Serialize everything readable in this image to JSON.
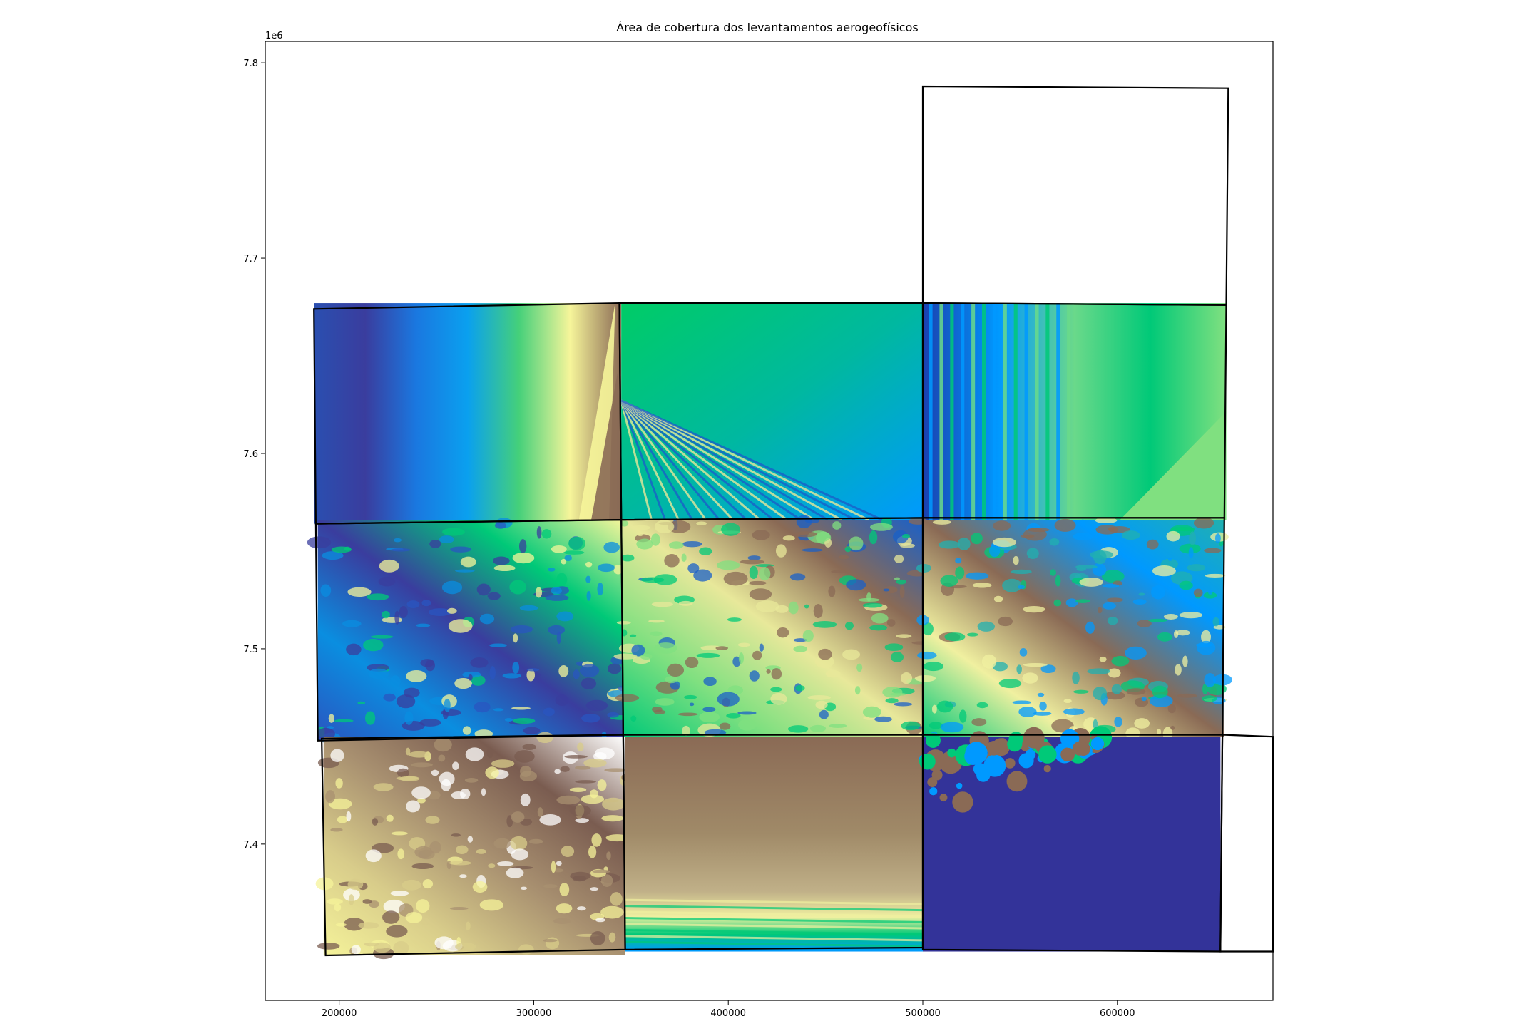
{
  "chart_data": {
    "type": "heatmap",
    "title": "Área de cobertura dos levantamentos aerogeofísicos",
    "xlabel": "",
    "ylabel": "",
    "xlim": [
      162000,
      680000
    ],
    "ylim": [
      7320000,
      7811000
    ],
    "x_ticks": [
      {
        "value": 200000,
        "label": "200000"
      },
      {
        "value": 300000,
        "label": "300000"
      },
      {
        "value": 400000,
        "label": "400000"
      },
      {
        "value": 500000,
        "label": "500000"
      },
      {
        "value": 600000,
        "label": "600000"
      }
    ],
    "y_ticks": [
      {
        "value": 7400000,
        "label": "7.4"
      },
      {
        "value": 7500000,
        "label": "7.5"
      },
      {
        "value": 7600000,
        "label": "7.6"
      },
      {
        "value": 7700000,
        "label": "7.7"
      },
      {
        "value": 7800000,
        "label": "7.8"
      }
    ],
    "y_offset_label": "1e6",
    "grid": false,
    "colormap": "terrain",
    "colormap_stops": [
      "#333399",
      "#1a5fcc",
      "#0099ff",
      "#00c978",
      "#80e080",
      "#ffff99",
      "#bfa57a",
      "#806050",
      "#ffffff"
    ],
    "raster_tiles": [
      {
        "name": "tile-r1-c1",
        "x": [
          187000,
          345000
        ],
        "y": [
          7564000,
          7677000
        ],
        "pattern": "vertical-bands",
        "colors": [
          "#2a4fb0",
          "#3a3d9e",
          "#1a78e0",
          "#0aa0ef",
          "#45d07a",
          "#f6f59a",
          "#8a6a55"
        ]
      },
      {
        "name": "tile-r1-c2",
        "x": [
          345000,
          500000
        ],
        "y": [
          7566000,
          7677000
        ],
        "pattern": "fan",
        "colors": [
          "#00cc66",
          "#00b8a0",
          "#0099ff",
          "#1a60c8",
          "#e8e89a"
        ]
      },
      {
        "name": "tile-r1-c3",
        "x": [
          500000,
          656000
        ],
        "y": [
          7566000,
          7677000
        ],
        "pattern": "vertical-stripes",
        "colors": [
          "#1a40b0",
          "#0099ff",
          "#6ad98a",
          "#00c978",
          "#80e080"
        ]
      },
      {
        "name": "tile-r2-c1",
        "x": [
          189000,
          346000
        ],
        "y": [
          7453000,
          7566000
        ],
        "pattern": "terrain-low",
        "colors": [
          "#2a55c0",
          "#0a8ee0",
          "#3a3d9e",
          "#00c978",
          "#f6f59a"
        ]
      },
      {
        "name": "tile-r2-c2",
        "x": [
          346000,
          500000
        ],
        "y": [
          7455000,
          7566000
        ],
        "pattern": "terrain-mixed",
        "colors": [
          "#00c978",
          "#80e080",
          "#e8e89a",
          "#8a6a55",
          "#1a60c8"
        ]
      },
      {
        "name": "tile-r2-c3",
        "x": [
          500000,
          655000
        ],
        "y": [
          7455000,
          7566000
        ],
        "pattern": "terrain-mixed",
        "colors": [
          "#00c978",
          "#f0f0a0",
          "#8a6a55",
          "#0099ff",
          "#20b0b0"
        ]
      },
      {
        "name": "tile-r3-c1",
        "x": [
          192000,
          347000
        ],
        "y": [
          7343000,
          7455000
        ],
        "pattern": "terrain-high",
        "colors": [
          "#f5f39a",
          "#d8cc8a",
          "#a89070",
          "#7a5c50",
          "#ffffff"
        ]
      },
      {
        "name": "tile-r3-c2",
        "x": [
          347000,
          500000
        ],
        "y": [
          7345000,
          7455000
        ],
        "pattern": "horizontal-bands",
        "colors": [
          "#8a6a55",
          "#a08a68",
          "#c0b088",
          "#f0f0a0",
          "#00c978",
          "#0099ff"
        ]
      },
      {
        "name": "tile-r3-c3",
        "x": [
          500000,
          653000
        ],
        "y": [
          7345000,
          7455000
        ],
        "pattern": "ocean-coast",
        "colors": [
          "#333399",
          "#0099ff",
          "#00c978",
          "#8a6a55"
        ]
      }
    ],
    "outlines": [
      {
        "name": "outline-r1-c1",
        "points": [
          [
            187000,
            7674000
          ],
          [
            344000,
            7677000
          ],
          [
            345000,
            7566000
          ],
          [
            188000,
            7564000
          ]
        ]
      },
      {
        "name": "outline-r1-c2",
        "points": [
          [
            344000,
            7677000
          ],
          [
            500000,
            7677000
          ],
          [
            500000,
            7567000
          ],
          [
            345000,
            7566000
          ]
        ]
      },
      {
        "name": "outline-r1-c3",
        "points": [
          [
            500000,
            7677000
          ],
          [
            656000,
            7676000
          ],
          [
            655000,
            7567000
          ],
          [
            500000,
            7567000
          ]
        ]
      },
      {
        "name": "outline-north-block",
        "points": [
          [
            500000,
            7788000
          ],
          [
            657000,
            7787000
          ],
          [
            656000,
            7676000
          ],
          [
            500000,
            7677000
          ]
        ]
      },
      {
        "name": "outline-r2-c1",
        "points": [
          [
            188000,
            7564000
          ],
          [
            345000,
            7566000
          ],
          [
            346000,
            7456000
          ],
          [
            189000,
            7453000
          ]
        ]
      },
      {
        "name": "outline-r2-c2",
        "points": [
          [
            345000,
            7566000
          ],
          [
            500000,
            7567000
          ],
          [
            500000,
            7456000
          ],
          [
            346000,
            7456000
          ]
        ]
      },
      {
        "name": "outline-r2-c3",
        "points": [
          [
            500000,
            7567000
          ],
          [
            655000,
            7567000
          ],
          [
            654000,
            7456000
          ],
          [
            500000,
            7456000
          ]
        ]
      },
      {
        "name": "outline-r3-c1",
        "points": [
          [
            191000,
            7454000
          ],
          [
            346000,
            7456000
          ],
          [
            347000,
            7346000
          ],
          [
            193000,
            7343000
          ]
        ]
      },
      {
        "name": "outline-r3-c2",
        "points": [
          [
            346000,
            7456000
          ],
          [
            500000,
            7456000
          ],
          [
            500000,
            7347000
          ],
          [
            347000,
            7346000
          ]
        ]
      },
      {
        "name": "outline-r3-c3",
        "points": [
          [
            500000,
            7456000
          ],
          [
            654000,
            7456000
          ],
          [
            653000,
            7345000
          ],
          [
            500000,
            7346000
          ]
        ]
      },
      {
        "name": "outline-east-strip",
        "points": [
          [
            654000,
            7456000
          ],
          [
            680000,
            7455000
          ],
          [
            680000,
            7345000
          ],
          [
            653000,
            7345000
          ]
        ]
      }
    ]
  }
}
